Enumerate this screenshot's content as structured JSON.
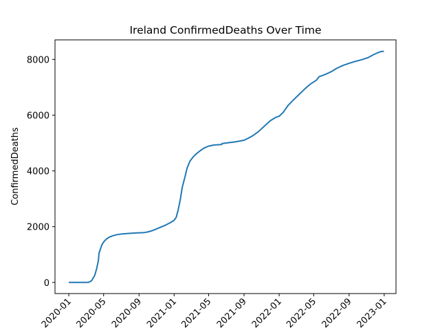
{
  "chart_data": {
    "type": "line",
    "title": "Ireland  ConfirmedDeaths Over Time",
    "xlabel": "",
    "ylabel": "ConfirmedDeaths",
    "xlim": [
      "2019-11-14",
      "2023-02-11"
    ],
    "ylim": [
      -400,
      8700
    ],
    "grid": false,
    "x_ticks": [
      "2020-01",
      "2020-05",
      "2020-09",
      "2021-01",
      "2021-05",
      "2021-09",
      "2022-01",
      "2022-05",
      "2022-09",
      "2023-01"
    ],
    "y_ticks": [
      0,
      2000,
      4000,
      6000,
      8000
    ],
    "series": [
      {
        "color": "#1f77b4",
        "points": [
          [
            "2020-01-01",
            0
          ],
          [
            "2020-02-29",
            0
          ],
          [
            "2020-03-10",
            5
          ],
          [
            "2020-03-20",
            60
          ],
          [
            "2020-03-31",
            250
          ],
          [
            "2020-04-07",
            500
          ],
          [
            "2020-04-13",
            800
          ],
          [
            "2020-04-15",
            1050
          ],
          [
            "2020-04-20",
            1200
          ],
          [
            "2020-04-25",
            1350
          ],
          [
            "2020-05-01",
            1450
          ],
          [
            "2020-05-10",
            1550
          ],
          [
            "2020-05-20",
            1620
          ],
          [
            "2020-06-01",
            1670
          ],
          [
            "2020-06-15",
            1710
          ],
          [
            "2020-07-01",
            1735
          ],
          [
            "2020-08-01",
            1760
          ],
          [
            "2020-09-01",
            1780
          ],
          [
            "2020-09-20",
            1790
          ],
          [
            "2020-10-01",
            1810
          ],
          [
            "2020-10-15",
            1850
          ],
          [
            "2020-11-01",
            1920
          ],
          [
            "2020-12-01",
            2050
          ],
          [
            "2020-12-20",
            2150
          ],
          [
            "2021-01-01",
            2230
          ],
          [
            "2021-01-08",
            2330
          ],
          [
            "2021-01-15",
            2600
          ],
          [
            "2021-01-22",
            2950
          ],
          [
            "2021-01-29",
            3400
          ],
          [
            "2021-02-08",
            3800
          ],
          [
            "2021-02-15",
            4100
          ],
          [
            "2021-02-25",
            4350
          ],
          [
            "2021-03-08",
            4500
          ],
          [
            "2021-03-20",
            4620
          ],
          [
            "2021-04-01",
            4720
          ],
          [
            "2021-04-15",
            4820
          ],
          [
            "2021-05-01",
            4890
          ],
          [
            "2021-05-20",
            4930
          ],
          [
            "2021-06-05",
            4940
          ],
          [
            "2021-06-15",
            4945
          ],
          [
            "2021-06-16",
            4980
          ],
          [
            "2021-07-01",
            5000
          ],
          [
            "2021-08-01",
            5040
          ],
          [
            "2021-09-01",
            5100
          ],
          [
            "2021-09-15",
            5170
          ],
          [
            "2021-10-01",
            5260
          ],
          [
            "2021-10-20",
            5400
          ],
          [
            "2021-11-10",
            5600
          ],
          [
            "2021-12-01",
            5800
          ],
          [
            "2021-12-20",
            5920
          ],
          [
            "2022-01-01",
            5960
          ],
          [
            "2022-01-15",
            6100
          ],
          [
            "2022-02-01",
            6350
          ],
          [
            "2022-02-20",
            6550
          ],
          [
            "2022-03-10",
            6730
          ],
          [
            "2022-04-01",
            6950
          ],
          [
            "2022-04-20",
            7120
          ],
          [
            "2022-05-10",
            7250
          ],
          [
            "2022-05-20",
            7380
          ],
          [
            "2022-06-10",
            7460
          ],
          [
            "2022-07-01",
            7560
          ],
          [
            "2022-07-20",
            7680
          ],
          [
            "2022-08-10",
            7780
          ],
          [
            "2022-09-01",
            7860
          ],
          [
            "2022-09-20",
            7920
          ],
          [
            "2022-10-15",
            7990
          ],
          [
            "2022-11-05",
            8060
          ],
          [
            "2022-11-25",
            8170
          ],
          [
            "2022-12-10",
            8240
          ],
          [
            "2022-12-20",
            8280
          ],
          [
            "2022-12-31",
            8290
          ]
        ]
      }
    ]
  }
}
